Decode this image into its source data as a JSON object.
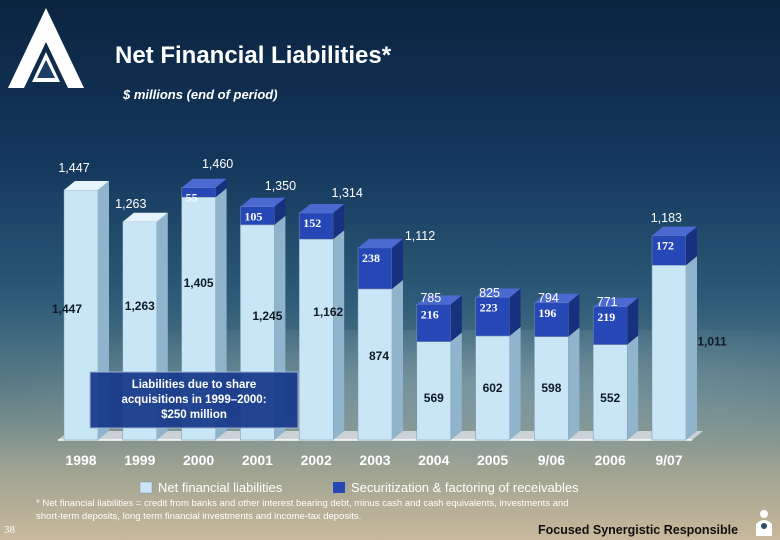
{
  "page": {
    "title": "Net Financial Liabilities*",
    "subtitle": "$ millions (end of period)",
    "footnote": "* Net financial liabilities = credit from banks and other interest bearing debt, minus cash and cash equivalents, investments and short-term deposits, long term financial investments and income-tax deposits.",
    "page_number": "38",
    "tagline": "Focused  Synergistic Responsible",
    "annotation": "Liabilities due to share acquisitions in 1999–2000: $250 million"
  },
  "colors": {
    "net_financial": "#c9e6f6",
    "securitization": "#2647b6",
    "annotation_box": "#1a3c8c"
  },
  "icons": {
    "logo": "company-logo-icon",
    "tagline": "people-icon"
  },
  "chart_data": {
    "type": "bar",
    "stacked": true,
    "categories": [
      "1998",
      "1999",
      "2000",
      "2001",
      "2002",
      "2003",
      "2004",
      "2005",
      "9/06",
      "2006",
      "9/07"
    ],
    "series": [
      {
        "name": "Net financial liabilities",
        "values": [
          1447,
          1263,
          1405,
          1245,
          1162,
          874,
          569,
          602,
          598,
          552,
          1011
        ],
        "labels": [
          "1,447",
          "1,263",
          "1,405",
          "1,245",
          "1,162",
          "874",
          "569",
          "602",
          "598",
          "552",
          "1,011"
        ]
      },
      {
        "name": "Securitization & factoring of receivables",
        "values": [
          0,
          0,
          55,
          105,
          152,
          238,
          216,
          223,
          196,
          219,
          172
        ],
        "labels": [
          "",
          "",
          "55",
          "105",
          "152",
          "238",
          "216",
          "223",
          "196",
          "219",
          "172"
        ]
      }
    ],
    "totals": [
      1447,
      1263,
      1460,
      1350,
      1314,
      1112,
      785,
      825,
      794,
      771,
      1183
    ],
    "total_labels": [
      "1,447",
      "1,263",
      "1,460",
      "1,350",
      "1,314",
      "1,112",
      "785",
      "825",
      "794",
      "771",
      "1,183"
    ],
    "ylim": [
      0,
      1600
    ],
    "grid": false,
    "legend": "bottom"
  }
}
